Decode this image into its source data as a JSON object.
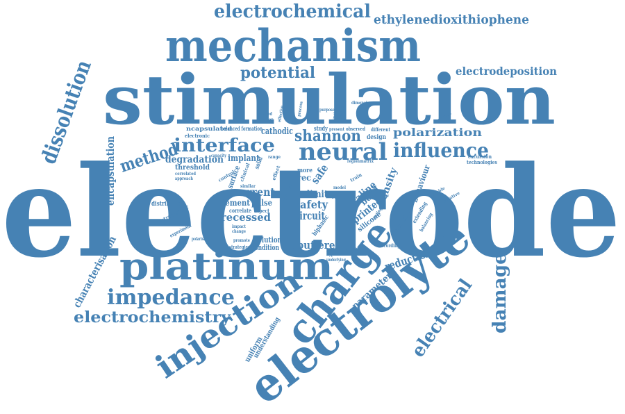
{
  "accent_color": "#4682b4",
  "words": {
    "electrode": "electrode",
    "stimulation": "stimulation",
    "mechanism": "mechanism",
    "electrolyte": "electrolyte",
    "platinum": "platinum",
    "charge": "charge",
    "injection": "injection",
    "electrochemical": "electrochemical",
    "ethylenedioxithiophene": "ethylenedioxithiophene",
    "potential": "potential",
    "electrodeposition": "electrodeposition",
    "dissolution": "dissolution",
    "neural": "neural",
    "interface": "interface",
    "influence": "influence",
    "shannon": "shannon",
    "polarization": "polarization",
    "method": "method",
    "degradation": "degradation",
    "implant": "implant",
    "encapsulation": "encapsulation",
    "cathodic": "cathodic",
    "impedance": "impedance",
    "electrochemistry": "electrochemistry",
    "characterisation": "characterisation",
    "damage": "damage",
    "electrical": "electrical",
    "parameter": "parameter",
    "reduction": "reduction",
    "unbuffered": "unbuffered",
    "recessed": "recessed",
    "current": "current",
    "element": "element",
    "pulse": "pulse",
    "safety": "safety",
    "circuit": "circuit",
    "saline": "saline",
    "printed": "printed",
    "density": "density",
    "behaviour": "behaviour",
    "solution": "solution",
    "condition": "condition",
    "strategies": "strategies",
    "distribution": "distribution",
    "extracellular": "extracellular",
    "threshold": "threshold",
    "understanding": "understanding",
    "uniform": "uniform",
    "encapsulated": "ncapsulated",
    "balanced_formation": "balanced formation",
    "electronic": "electronic",
    "capacity": "capacity",
    "study": "study",
    "present": "present",
    "observed": "observed",
    "design": "design",
    "different": "different",
    "technologies": "technologies",
    "excursion": "excursion",
    "variation": "variation",
    "limit": "limit",
    "safe": "safe",
    "rec": "rec",
    "more": "more",
    "bond": "bond",
    "silicone": "silicone",
    "biphasic": "biphasic",
    "hypothesis": "hypothesi",
    "recording": "recording",
    "mimicking": "mimicking",
    "extending": "extending",
    "balancing": "balancing",
    "experiment": "experiment",
    "polarisation": "polarisation",
    "correlate": "correlate",
    "aspect": "aspect",
    "similar": "similar",
    "surface": "surface",
    "control": "control",
    "clinical": "clinical",
    "effect": "effect",
    "profile": "profile",
    "result": "result",
    "train": "train",
    "review": "review",
    "matrix": "matrix",
    "region": "region",
    "change": "change",
    "impact": "impact",
    "promote": "promote",
    "underlying": "underlying",
    "correlated": "correlated",
    "approach": "approach",
    "function": "function",
    "focused": "focused",
    "model": "model",
    "range": "range",
    "solid": "solid",
    "effective": "effective",
    "process": "process",
    "pattern": "pattern",
    "purpose": "purpose",
    "dimension": "dimension",
    "synchronous": "synchronous",
    "morphology": "morphology",
    "relative": "relative",
    "stable": "stable",
    "spread": "spread",
    "coating": "coating"
  }
}
